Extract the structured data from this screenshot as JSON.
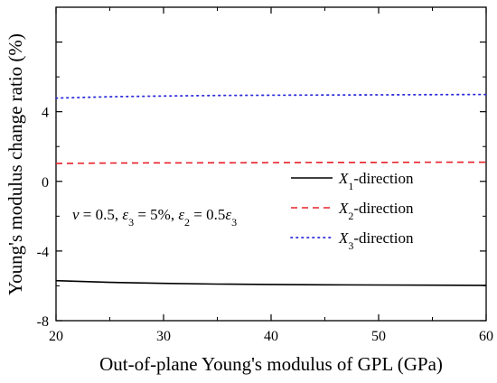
{
  "chart_data": {
    "type": "line",
    "xlabel": "Out-of-plane Young's modulus of GPL (GPa)",
    "ylabel": "Young's modulus change ratio (%)",
    "xlim": [
      20,
      60
    ],
    "ylim": [
      -8,
      10
    ],
    "xticks": [
      20,
      30,
      40,
      50,
      60
    ],
    "yticks": [
      -8,
      -4,
      0,
      4
    ],
    "ytick_labels": [
      "-8",
      "-4",
      "0",
      "4"
    ],
    "grid": false,
    "legend_position": "right-middle",
    "series": [
      {
        "name": "X1-direction",
        "legend_main": "X",
        "legend_sub": "1",
        "legend_suffix": "-direction",
        "color": "#000000",
        "dash": "solid",
        "x": [
          20,
          25,
          30,
          35,
          40,
          45,
          50,
          55,
          60
        ],
        "y": [
          -5.7,
          -5.8,
          -5.86,
          -5.9,
          -5.92,
          -5.94,
          -5.95,
          -5.96,
          -5.97
        ]
      },
      {
        "name": "X2-direction",
        "legend_main": "X",
        "legend_sub": "2",
        "legend_suffix": "-direction",
        "color": "#e8202a",
        "dash": "dashed",
        "x": [
          20,
          25,
          30,
          35,
          40,
          45,
          50,
          55,
          60
        ],
        "y": [
          1.03,
          1.05,
          1.06,
          1.07,
          1.08,
          1.09,
          1.09,
          1.1,
          1.1
        ]
      },
      {
        "name": "X3-direction",
        "legend_main": "X",
        "legend_sub": "3",
        "legend_suffix": "-direction",
        "color": "#2b2bd9",
        "dash": "dotted",
        "x": [
          20,
          25,
          30,
          35,
          40,
          45,
          50,
          55,
          60
        ],
        "y": [
          4.78,
          4.86,
          4.9,
          4.93,
          4.95,
          4.96,
          4.97,
          4.98,
          4.99
        ]
      }
    ],
    "annotation": {
      "parts": [
        {
          "t": "ν",
          "i": true
        },
        {
          "t": " = 0.5, "
        },
        {
          "t": "ε",
          "i": true
        },
        {
          "t": "3",
          "sub": true
        },
        {
          "t": " = 5%, "
        },
        {
          "t": "ε",
          "i": true
        },
        {
          "t": "2",
          "sub": true
        },
        {
          "t": " = 0.5"
        },
        {
          "t": "ε",
          "i": true
        },
        {
          "t": "3",
          "sub": true
        }
      ]
    }
  }
}
